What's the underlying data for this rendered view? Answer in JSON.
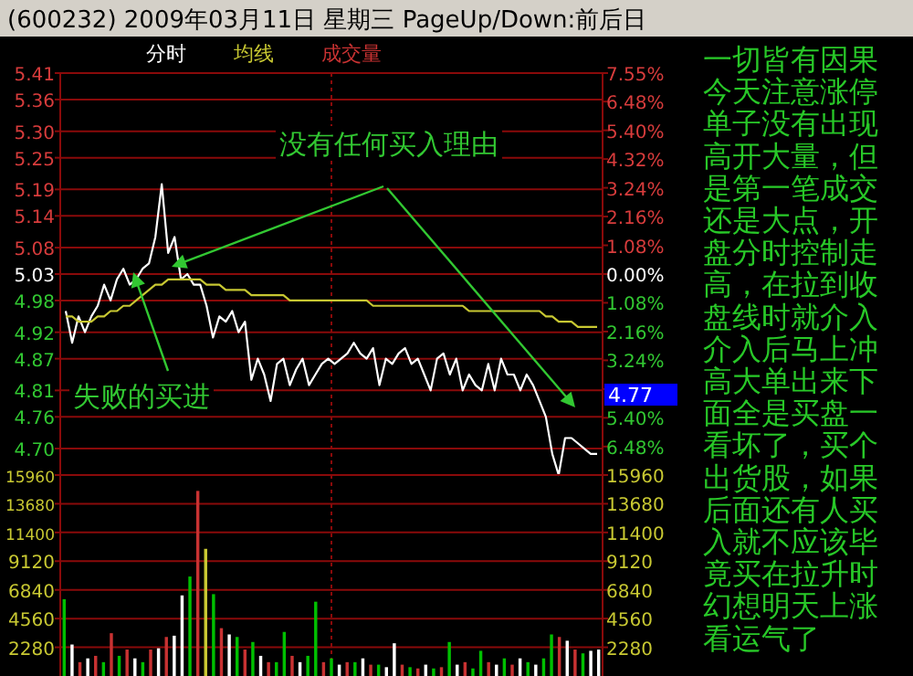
{
  "chart_data": [
    {
      "type": "line",
      "title": "(600232) 2009年03月11日 星期三 PageUp/Down:前后日",
      "legend": "top left",
      "grid": true,
      "categories": [
        null,
        null,
        null,
        null,
        null,
        null,
        null,
        null,
        null,
        null,
        null,
        null,
        null,
        null,
        null,
        null,
        null,
        null,
        null,
        null,
        null,
        null,
        null,
        null,
        null,
        null,
        null,
        null,
        null,
        null,
        null,
        null,
        null,
        null,
        null,
        null,
        null,
        null,
        null,
        null,
        null,
        null,
        null,
        null,
        null,
        null,
        null,
        null,
        null,
        null,
        null,
        null,
        null,
        null,
        null,
        null,
        null,
        null,
        null,
        null,
        null,
        null,
        null,
        null,
        null,
        null,
        null,
        null,
        null,
        null,
        null,
        null,
        null,
        null,
        null,
        null,
        null,
        null,
        null,
        null,
        null,
        null,
        null,
        null
      ],
      "ylim": [
        4.65,
        5.41
      ],
      "yticks": [
        {
          "value": 5.41,
          "label": "5.41"
        },
        {
          "value": 5.36,
          "label": "5.36"
        },
        {
          "value": 5.3,
          "label": "5.30"
        },
        {
          "value": 5.25,
          "label": "5.25"
        },
        {
          "value": 5.19,
          "label": "5.19"
        },
        {
          "value": 5.14,
          "label": "5.14"
        },
        {
          "value": 5.08,
          "label": "5.08"
        },
        {
          "value": 5.03,
          "label": "5.03"
        },
        {
          "value": 4.98,
          "label": "4.98"
        },
        {
          "value": 4.92,
          "label": "4.92"
        },
        {
          "value": 4.87,
          "label": "4.87"
        },
        {
          "value": 4.81,
          "label": "4.81"
        },
        {
          "value": 4.76,
          "label": "4.76"
        },
        {
          "value": 4.7,
          "label": "4.70"
        }
      ],
      "y2lim": [
        -7.55,
        7.55
      ],
      "y2ticks": [
        {
          "value": 7.55,
          "label": "7.55%"
        },
        {
          "value": 6.48,
          "label": "6.48%"
        },
        {
          "value": 5.4,
          "label": "5.40%"
        },
        {
          "value": 4.32,
          "label": "4.32%"
        },
        {
          "value": 3.24,
          "label": "3.24%"
        },
        {
          "value": 2.16,
          "label": "2.16%"
        },
        {
          "value": 1.08,
          "label": "1.08%"
        },
        {
          "value": 0,
          "label": "0.00%"
        },
        {
          "value": -1.08,
          "label": "1.08%"
        },
        {
          "value": -2.16,
          "label": "2.16%"
        },
        {
          "value": -3.24,
          "label": "3.24%"
        },
        {
          "value": -4.32,
          "label": null
        },
        {
          "value": -5.4,
          "label": "5.40%"
        },
        {
          "value": -6.48,
          "label": "6.48%"
        }
      ],
      "series": [
        {
          "name": "分时",
          "color": "#ffffff",
          "values": [
            4.96,
            4.9,
            4.95,
            4.92,
            4.95,
            4.97,
            5.01,
            4.98,
            5.02,
            5.04,
            5.01,
            5.02,
            5.04,
            5.05,
            5.1,
            5.2,
            5.07,
            5.1,
            5.02,
            5.03,
            5.01,
            5.01,
            4.97,
            4.91,
            4.95,
            4.94,
            4.96,
            4.92,
            4.94,
            4.83,
            4.87,
            4.84,
            4.79,
            4.86,
            4.87,
            4.82,
            4.85,
            4.87,
            4.82,
            4.84,
            4.86,
            4.87,
            4.86,
            4.87,
            4.88,
            4.9,
            4.88,
            4.87,
            4.89,
            4.82,
            4.87,
            4.86,
            4.88,
            4.89,
            4.86,
            4.87,
            4.84,
            4.81,
            4.87,
            4.88,
            4.84,
            4.87,
            4.81,
            4.84,
            4.82,
            4.81,
            4.86,
            4.81,
            4.87,
            4.84,
            4.84,
            4.81,
            4.84,
            4.82,
            4.79,
            4.76,
            4.69,
            4.65,
            4.72,
            4.72,
            4.71,
            4.7,
            4.69,
            4.69
          ]
        },
        {
          "name": "均线",
          "color": "#c8c832",
          "values": [
            4.95,
            4.95,
            4.94,
            4.94,
            4.94,
            4.95,
            4.95,
            4.96,
            4.96,
            4.97,
            4.97,
            4.98,
            4.99,
            5.0,
            5.01,
            5.01,
            5.02,
            5.02,
            5.02,
            5.02,
            5.02,
            5.02,
            5.01,
            5.01,
            5.01,
            5.0,
            5.0,
            5.0,
            5.0,
            4.99,
            4.99,
            4.99,
            4.99,
            4.99,
            4.99,
            4.98,
            4.98,
            4.98,
            4.98,
            4.98,
            4.98,
            4.98,
            4.98,
            4.98,
            4.98,
            4.98,
            4.98,
            4.98,
            4.97,
            4.97,
            4.97,
            4.97,
            4.97,
            4.97,
            4.97,
            4.97,
            4.97,
            4.97,
            4.97,
            4.97,
            4.97,
            4.97,
            4.97,
            4.96,
            4.96,
            4.96,
            4.96,
            4.96,
            4.96,
            4.96,
            4.96,
            4.96,
            4.96,
            4.96,
            4.96,
            4.95,
            4.95,
            4.94,
            4.94,
            4.94,
            4.93,
            4.93,
            4.93,
            4.93
          ]
        }
      ],
      "annotations": [
        "没有任何买入理由",
        "失败的买进",
        "4.77"
      ]
    },
    {
      "type": "bar",
      "grid": true,
      "legend": "top left",
      "categories": [
        null,
        null,
        null,
        null,
        null,
        null,
        null,
        null,
        null,
        null,
        null,
        null,
        null,
        null,
        null,
        null,
        null,
        null,
        null,
        null,
        null,
        null,
        null,
        null,
        null,
        null,
        null,
        null,
        null,
        null,
        null,
        null,
        null,
        null,
        null,
        null,
        null,
        null,
        null,
        null,
        null,
        null,
        null,
        null,
        null,
        null,
        null,
        null,
        null,
        null,
        null,
        null,
        null,
        null,
        null,
        null,
        null,
        null,
        null,
        null,
        null,
        null,
        null,
        null,
        null,
        null,
        null,
        null,
        null
      ],
      "ylim": [
        0,
        15960
      ],
      "yticks": [
        15960,
        13680,
        11400,
        9120,
        6840,
        4560,
        2280
      ],
      "y2lim": [
        0,
        15960
      ],
      "y2ticks": [
        15960,
        13680,
        11400,
        9120,
        6840,
        4560,
        2280
      ],
      "series": [
        {
          "name": "成交量",
          "color": "#c83232",
          "colors": [
            "#00c000",
            "#ffffff",
            "#c83232",
            "#ffffff",
            "#c83232",
            "#00c000",
            "#c83232",
            "#00c000",
            "#c83232",
            "#ffffff",
            "#00c000",
            "#c83232",
            "#ffffff",
            "#c83232",
            "#ffffff",
            "#ffffff",
            "#00c000",
            "#c83232",
            "#c8c832",
            "#00c000",
            "#c83232",
            "#ffffff",
            "#00c000",
            "#c83232",
            "#00c000",
            "#ffffff",
            "#c83232",
            "#00c000",
            "#00c000",
            "#c83232",
            "#ffffff",
            "#00c000",
            "#00c000",
            "#c83232",
            "#00c000",
            "#ffffff",
            "#c83232",
            "#00c000",
            "#ffffff",
            "#c83232",
            "#00c000",
            "#ffffff",
            "#ffffff",
            "#c83232",
            "#00c000",
            "#c83232",
            "#ffffff",
            "#00c000",
            "#c83232",
            "#00c000",
            "#ffffff",
            "#c83232",
            "#00c000",
            "#00c000",
            "#c83232",
            "#ffffff",
            "#00c000",
            "#c83232",
            "#ffffff",
            "#00c000",
            "#ffffff",
            "#00c000",
            "#00c000",
            "#c83232",
            "#ffffff",
            "#c83232",
            "#00c000",
            "#ffffff",
            "#ffffff"
          ],
          "values": [
            6100,
            2500,
            1100,
            1400,
            1600,
            1100,
            3400,
            1600,
            2100,
            1400,
            1100,
            2100,
            2200,
            3100,
            3200,
            6400,
            7900,
            14700,
            10100,
            6500,
            3800,
            3300,
            3100,
            2100,
            2700,
            1600,
            1100,
            1100,
            3500,
            1600,
            1100,
            1600,
            5900,
            1100,
            1400,
            900,
            1100,
            1100,
            1400,
            900,
            900,
            700,
            2600,
            900,
            700,
            600,
            900,
            600,
            700,
            2700,
            900,
            1100,
            600,
            2000,
            1100,
            900,
            1400,
            900,
            1400,
            1100,
            900,
            1400,
            3300,
            3100,
            2800,
            2100,
            1800,
            2000,
            2100
          ]
        }
      ]
    },
    {
      "type": "other",
      "annotations": [
        "一切皆有因果",
        "今天注意涨停",
        "单子没有出现",
        "高开大量，但",
        "是第一笔成交",
        "还是大点，开",
        "盘分时控制走",
        "高，在拉到收",
        "盘线时就介入",
        "介入后马上冲",
        "高大单出来下",
        "面全是买盘一",
        "看坏了，买个",
        "出货股，如果",
        "后面还有人买",
        "入就不应该毕",
        "竟买在拉升时",
        "幻想明天上涨",
        "看运气了"
      ]
    }
  ]
}
